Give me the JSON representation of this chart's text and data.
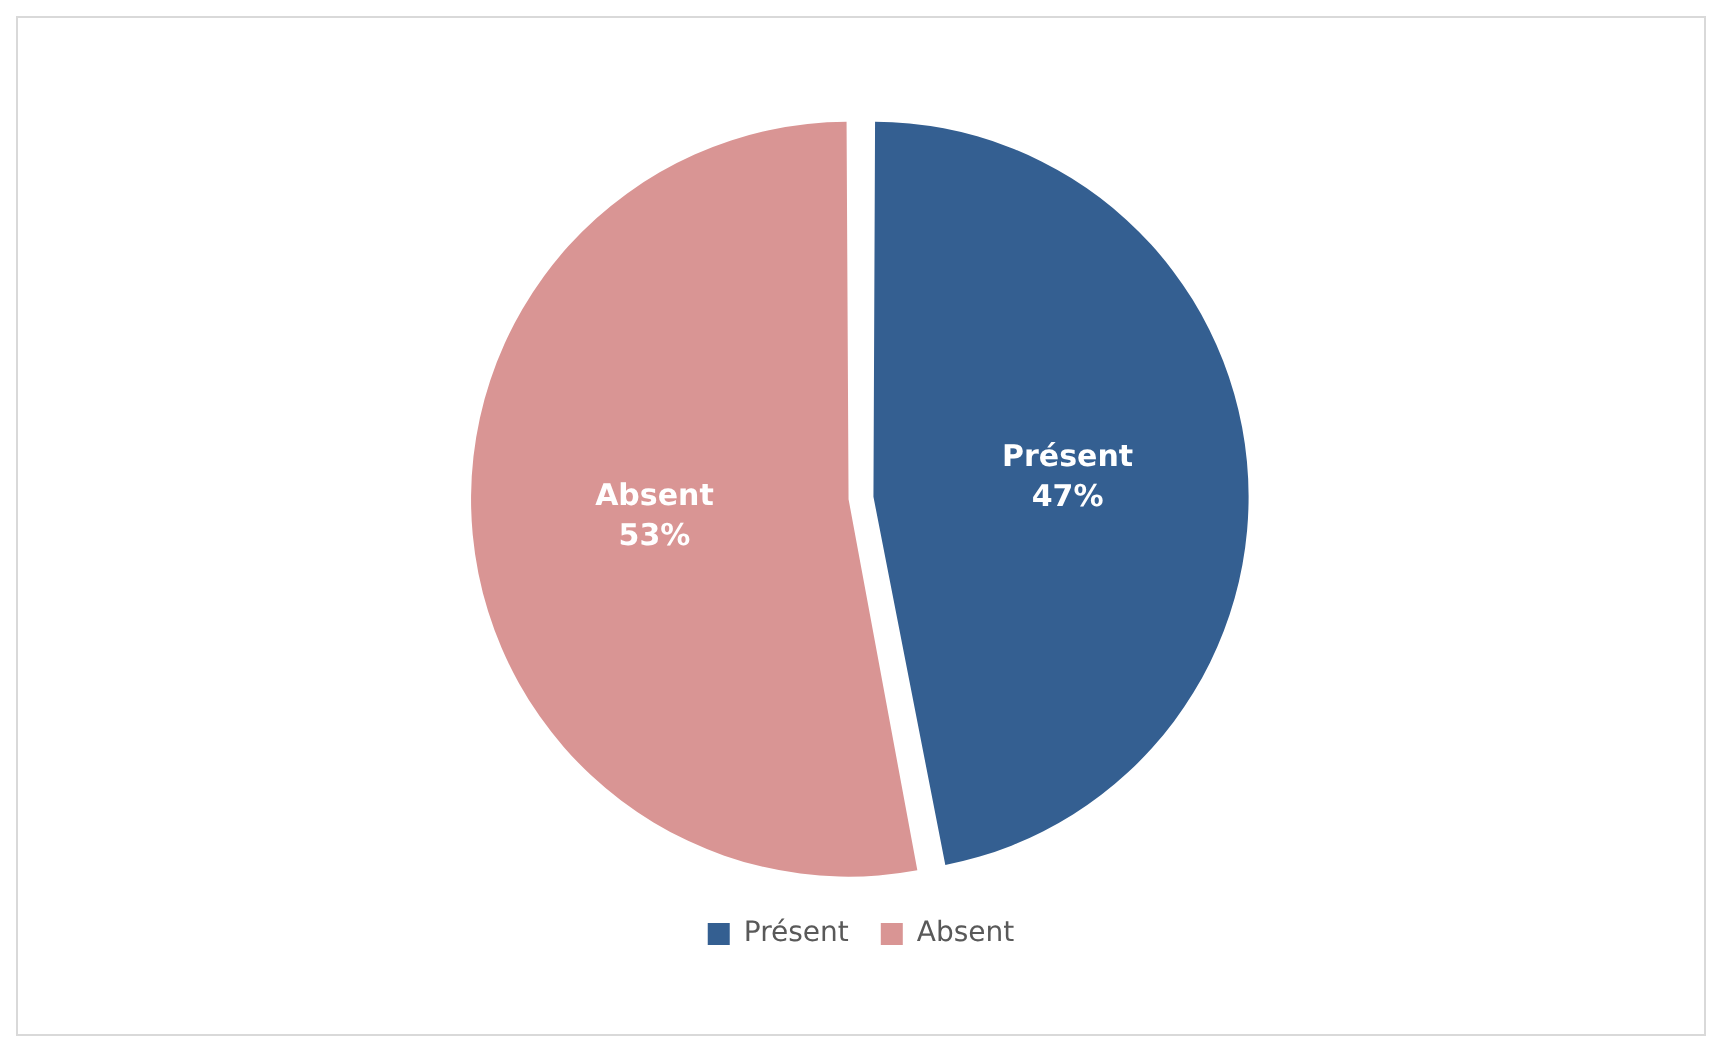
{
  "chart_data": {
    "type": "pie",
    "categories": [
      "Présent",
      "Absent"
    ],
    "values": [
      47,
      53
    ],
    "value_labels": [
      "47%",
      "53%"
    ],
    "colors": [
      "#345f91",
      "#d99594"
    ],
    "legend": "bottom"
  }
}
